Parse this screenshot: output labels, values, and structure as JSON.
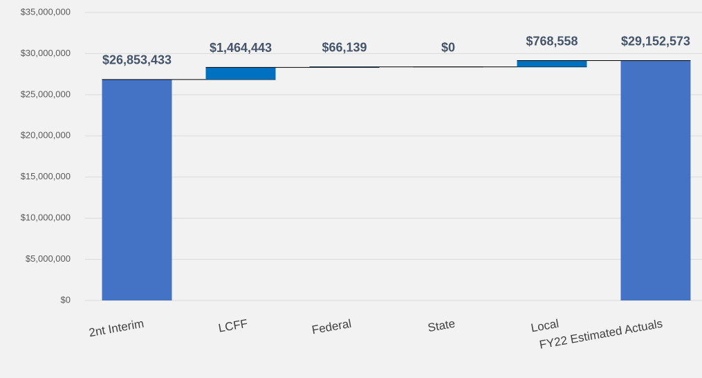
{
  "chart_data": {
    "type": "waterfall",
    "categories": [
      "2nt Interim",
      "LCFF",
      "Federal",
      "State",
      "Local",
      "FY22 Estimated Actuals"
    ],
    "values": [
      26853433,
      1464443,
      66139,
      0,
      768558,
      29152573
    ],
    "value_labels": [
      "$26,853,433",
      "$1,464,443",
      "$66,139",
      "$0",
      "$768,558",
      "$29,152,573"
    ],
    "totals": [
      true,
      false,
      false,
      false,
      false,
      true
    ],
    "colors": [
      "#4472c4",
      "#0070c0",
      "#0070c0",
      "#0070c0",
      "#0070c0",
      "#4472c4"
    ],
    "ylim": [
      0,
      35000000
    ],
    "yticks": [
      {
        "value": 0,
        "label": "$0"
      },
      {
        "value": 5000000,
        "label": "$5,000,000"
      },
      {
        "value": 10000000,
        "label": "$10,000,000"
      },
      {
        "value": 15000000,
        "label": "$15,000,000"
      },
      {
        "value": 20000000,
        "label": "$20,000,000"
      },
      {
        "value": 25000000,
        "label": "$25,000,000"
      },
      {
        "value": 30000000,
        "label": "$30,000,000"
      },
      {
        "value": 35000000,
        "label": "$35,000,000"
      }
    ],
    "grid": true
  }
}
